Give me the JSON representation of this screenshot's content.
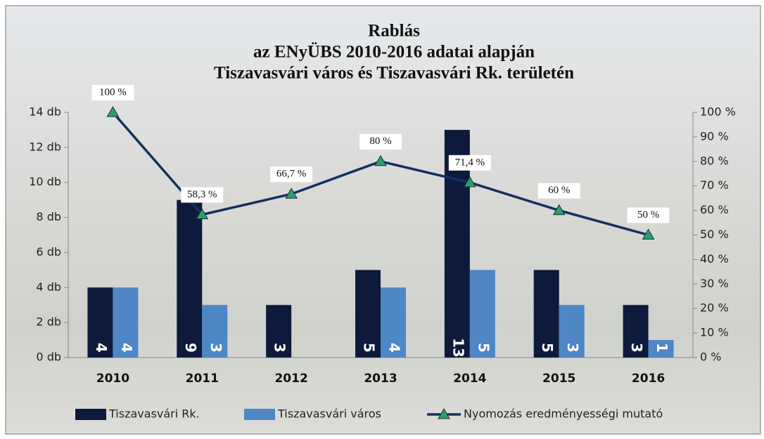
{
  "chart_data": {
    "type": "bar-line",
    "title": [
      "Rablás",
      "az ENyÜBS  2010-2016 adatai alapján",
      "Tiszavasvári város és Tiszavasvári Rk. területén"
    ],
    "categories": [
      "2010",
      "2011",
      "2012",
      "2013",
      "2014",
      "2015",
      "2016"
    ],
    "series": [
      {
        "name": "Tiszavasvári Rk.",
        "color": "#0e1a3c",
        "values": [
          4,
          9,
          3,
          5,
          13,
          5,
          3
        ]
      },
      {
        "name": "Tiszavasvári város",
        "color": "#4f86c6",
        "values": [
          4,
          3,
          null,
          4,
          5,
          3,
          1
        ]
      },
      {
        "name": "Nyomozás eredményességi mutató",
        "color": "#14305e",
        "marker_color": "#2e9e6a",
        "axis": "y2",
        "values": [
          100,
          58.3,
          66.7,
          80,
          71.4,
          60,
          50
        ],
        "value_labels": [
          "100 %",
          "58,3 %",
          "66,7 %",
          "80 %",
          "71,4 %",
          "60 %",
          "50 %"
        ]
      }
    ],
    "ylim": [
      0,
      14
    ],
    "yticks": [
      {
        "value": 0,
        "label": "0 db"
      },
      {
        "value": 2,
        "label": "2 db"
      },
      {
        "value": 4,
        "label": "4 db"
      },
      {
        "value": 6,
        "label": "6 db"
      },
      {
        "value": 8,
        "label": "8 db"
      },
      {
        "value": 10,
        "label": "10 db"
      },
      {
        "value": 12,
        "label": "12 db"
      },
      {
        "value": 14,
        "label": "14 db"
      }
    ],
    "y2lim": [
      0,
      100
    ],
    "y2ticks": [
      {
        "value": 0,
        "label": "0 %"
      },
      {
        "value": 10,
        "label": "10 %"
      },
      {
        "value": 20,
        "label": "20 %"
      },
      {
        "value": 30,
        "label": "30 %"
      },
      {
        "value": 40,
        "label": "40 %"
      },
      {
        "value": 50,
        "label": "50 %"
      },
      {
        "value": 60,
        "label": "60 %"
      },
      {
        "value": 70,
        "label": "70 %"
      },
      {
        "value": 80,
        "label": "80 %"
      },
      {
        "value": 90,
        "label": "90 %"
      },
      {
        "value": 100,
        "label": "100 %"
      }
    ],
    "grid": false
  }
}
